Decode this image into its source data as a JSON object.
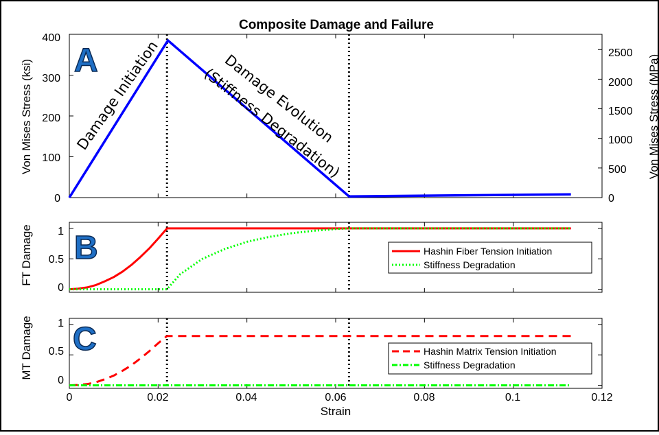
{
  "figure_title": "Composite Damage and Failure",
  "x_axis": {
    "label": "Strain",
    "ticks": [
      "0",
      "0.02",
      "0.04",
      "0.06",
      "0.08",
      "0.1",
      "0.12"
    ]
  },
  "panel_a": {
    "letter": "A",
    "ylabel_left": "Von Mises Stress (ksi)",
    "ylabel_right": "Von Mises Stress (MPa)",
    "yticks_left": [
      "0",
      "100",
      "200",
      "300",
      "400"
    ],
    "yticks_right": [
      "0",
      "500",
      "1000",
      "1500",
      "2000",
      "2500"
    ],
    "annotation_initiation": "Damage Initiation",
    "annotation_evolution_1": "Damage Evolution",
    "annotation_evolution_2": "(Stiffness Degradation)"
  },
  "panel_b": {
    "letter": "B",
    "ylabel": "FT Damage",
    "yticks": [
      "0",
      "0.5",
      "1"
    ],
    "legend": [
      "Hashin Fiber Tension Initiation",
      "Stiffness Degradation"
    ]
  },
  "panel_c": {
    "letter": "C",
    "ylabel": "MT Damage",
    "yticks": [
      "0",
      "0.5",
      "1"
    ],
    "legend": [
      "Hashin Matrix Tension Initiation",
      "Stiffness Degradation"
    ]
  },
  "colors": {
    "stress": "#0000ff",
    "fiber_init": "#ff0000",
    "stiffness": "#00ff00",
    "matrix_init": "#ff0000",
    "markers": "#000000"
  },
  "chart_data": [
    {
      "type": "line",
      "title": "Composite Damage and Failure",
      "xlabel": "",
      "ylabel": "Von Mises Stress (ksi)",
      "y2label": "Von Mises Stress (MPa)",
      "xlim": [
        0,
        0.12
      ],
      "ylim": [
        0,
        400
      ],
      "y2lim": [
        0,
        2758
      ],
      "series": [
        {
          "x": [
            0,
            0.0222,
            0.063,
            0.113
          ],
          "y": [
            0,
            385,
            3,
            8
          ]
        }
      ],
      "vlines": [
        0.022,
        0.063
      ]
    },
    {
      "type": "line",
      "xlabel": "",
      "ylabel": "FT Damage",
      "xlim": [
        0,
        0.12
      ],
      "ylim": [
        -0.05,
        1.1
      ],
      "legend_position": "middle-right",
      "series": [
        {
          "name": "Hashin Fiber Tension Initiation",
          "style": "solid",
          "x": [
            0,
            0.002,
            0.004,
            0.006,
            0.008,
            0.01,
            0.012,
            0.014,
            0.016,
            0.018,
            0.02,
            0.022,
            0.113
          ],
          "y": [
            0,
            0.01,
            0.03,
            0.07,
            0.13,
            0.2,
            0.29,
            0.4,
            0.53,
            0.67,
            0.83,
            1,
            1
          ]
        },
        {
          "name": "Stiffness Degradation",
          "style": "dotted",
          "x": [
            0,
            0.022,
            0.025,
            0.03,
            0.035,
            0.04,
            0.045,
            0.05,
            0.055,
            0.06,
            0.063,
            0.113
          ],
          "y": [
            0,
            0,
            0.25,
            0.5,
            0.66,
            0.78,
            0.86,
            0.92,
            0.96,
            0.99,
            1,
            1
          ]
        }
      ],
      "vlines": [
        0.022,
        0.063
      ]
    },
    {
      "type": "line",
      "xlabel": "Strain",
      "ylabel": "MT Damage",
      "xlim": [
        0,
        0.12
      ],
      "ylim": [
        -0.05,
        1.1
      ],
      "legend_position": "middle-right",
      "series": [
        {
          "name": "Hashin Matrix Tension Initiation",
          "style": "dashed",
          "x": [
            0,
            0.002,
            0.004,
            0.006,
            0.008,
            0.01,
            0.012,
            0.014,
            0.016,
            0.018,
            0.02,
            0.022,
            0.113
          ],
          "y": [
            0,
            0.005,
            0.02,
            0.05,
            0.1,
            0.16,
            0.24,
            0.33,
            0.44,
            0.56,
            0.69,
            0.81,
            0.81
          ]
        },
        {
          "name": "Stiffness Degradation",
          "style": "dash-dot",
          "x": [
            0,
            0.113
          ],
          "y": [
            0,
            0
          ]
        }
      ],
      "vlines": [
        0.022,
        0.063
      ]
    }
  ]
}
